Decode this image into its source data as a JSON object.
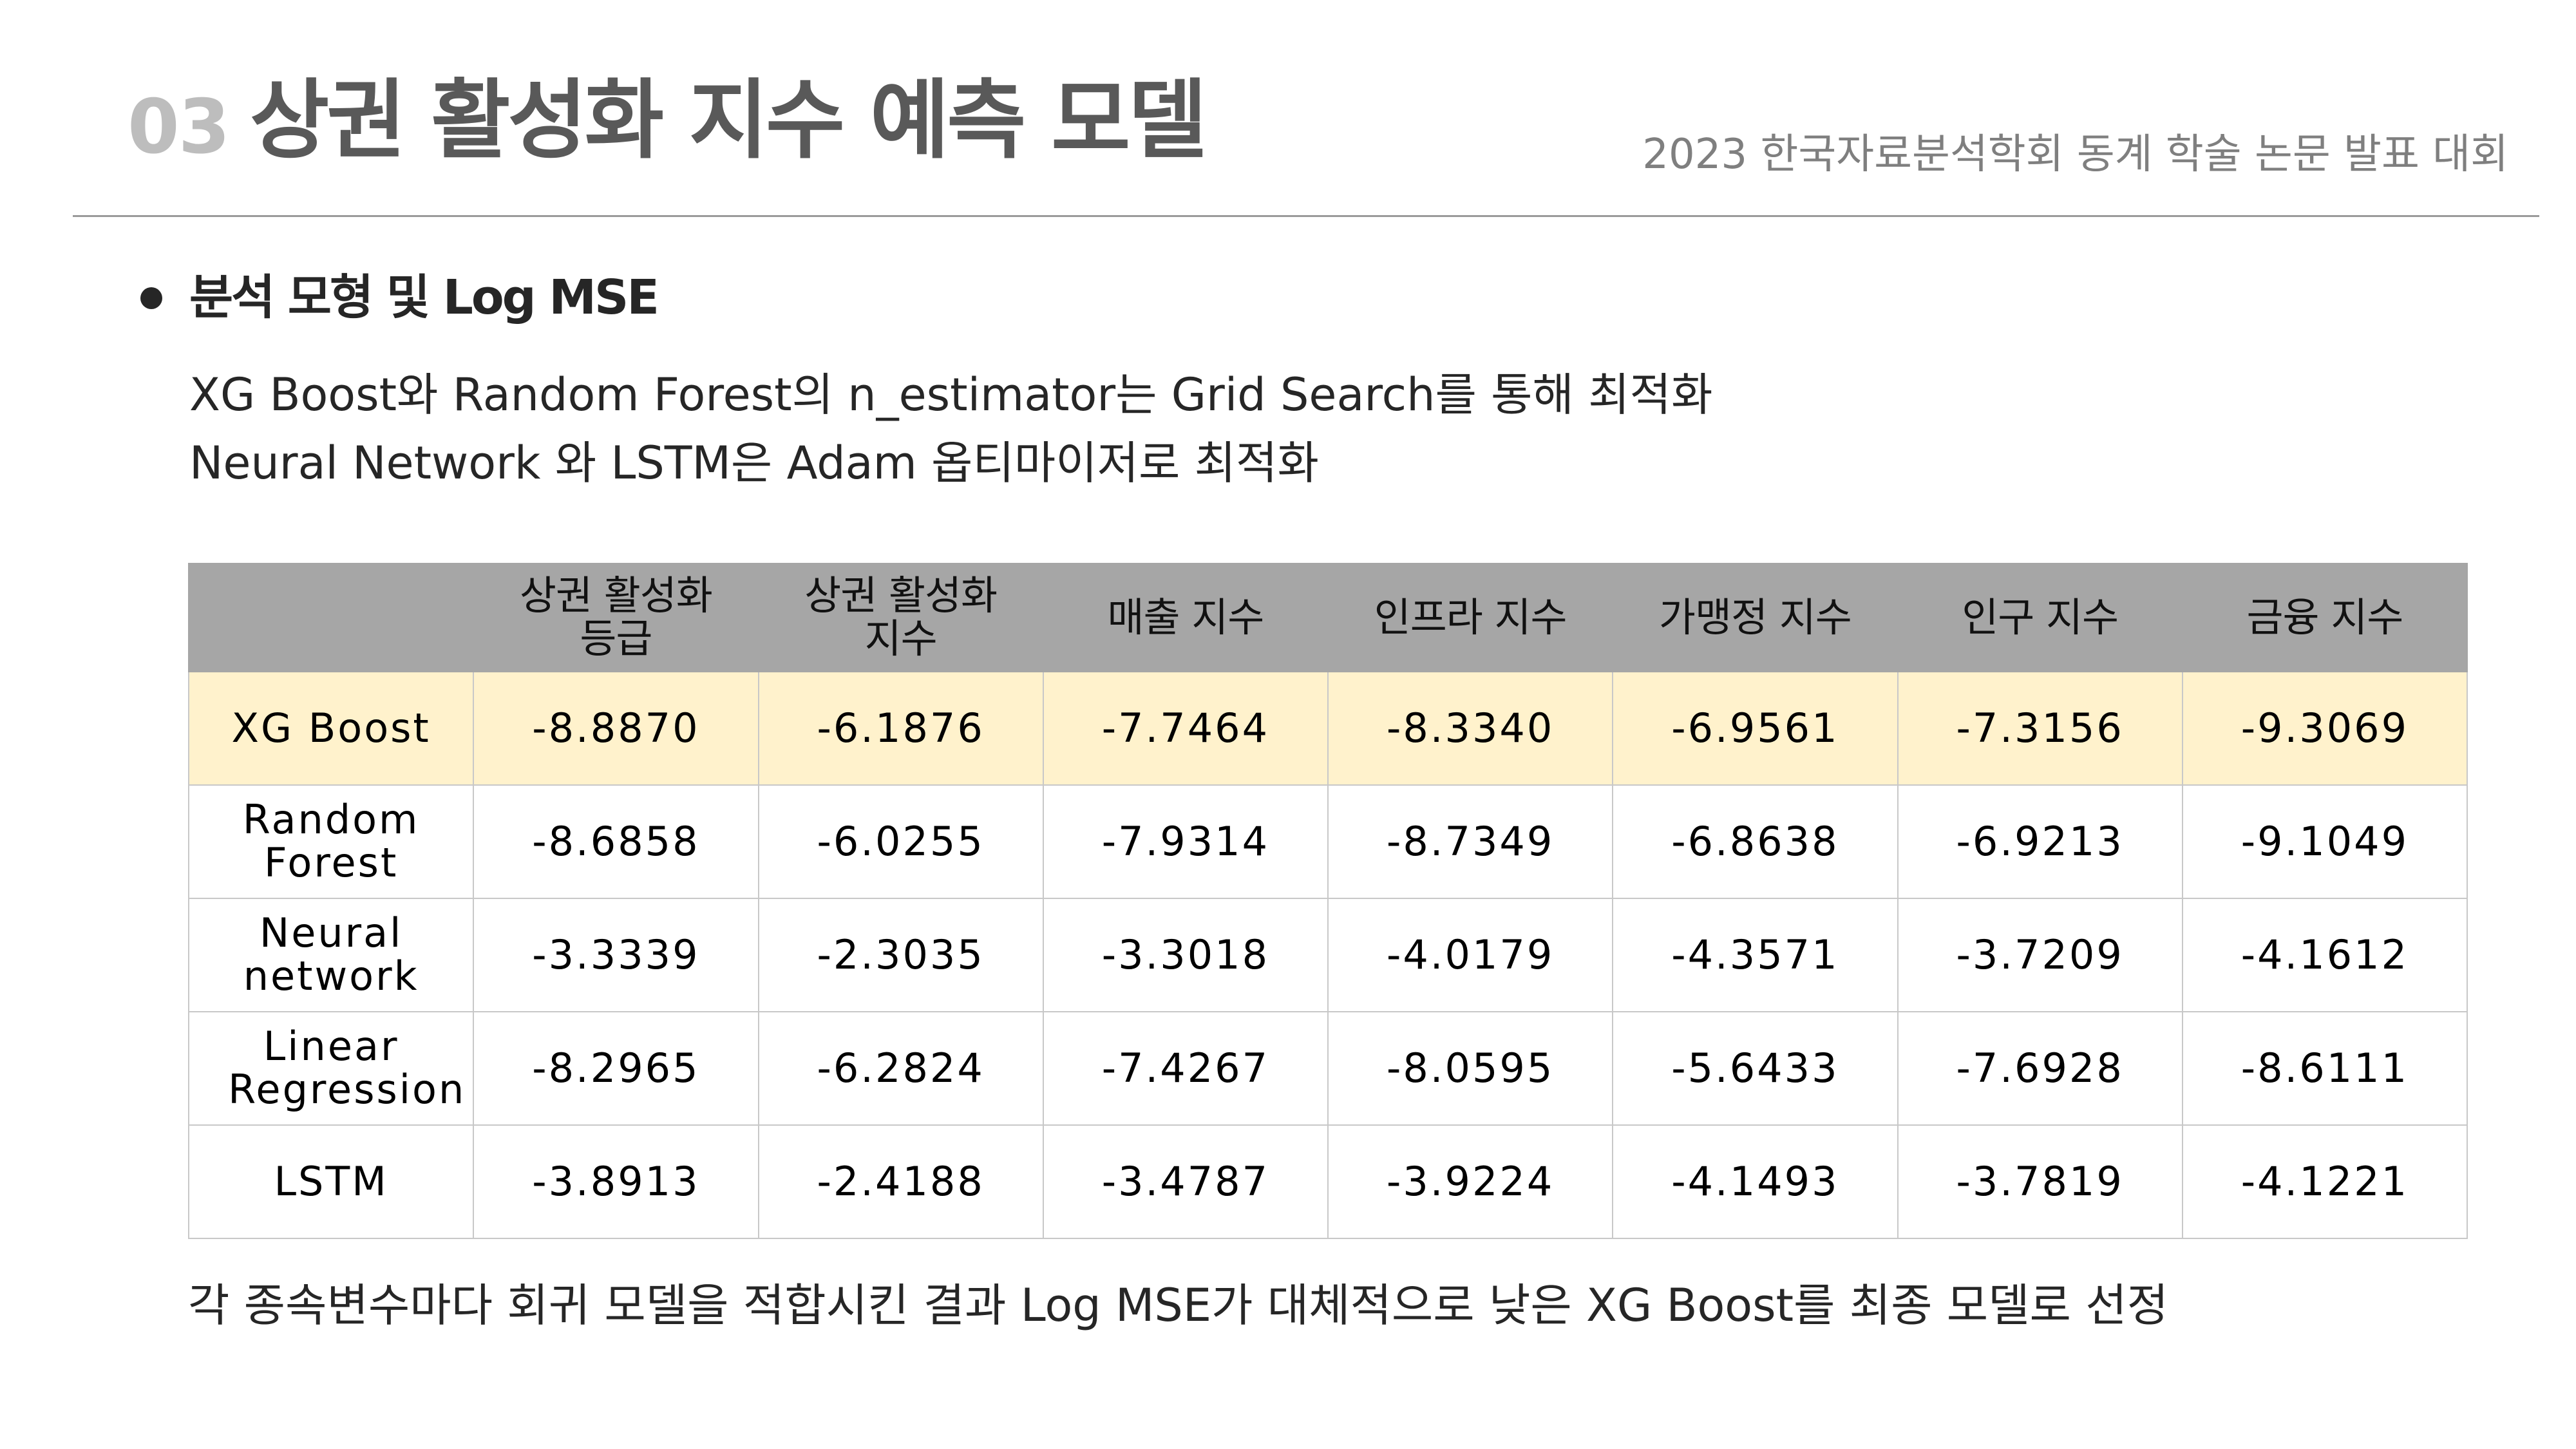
{
  "header": {
    "number": "03",
    "title": "상권 활성화 지수 예측 모델",
    "conference": "2023 한국자료분석학회 동계 학술 논문 발표 대회"
  },
  "section": {
    "heading": "분석 모형 및 Log MSE",
    "description": [
      "XG Boost와 Random Forest의 n_estimator는 Grid Search를 통해 최적화",
      "Neural Network 와 LSTM은 Adam 옵티마이저로 최적화"
    ]
  },
  "table": {
    "columns": [
      "",
      "상권 활성화 등급",
      "상권 활성화 지수",
      "매출 지수",
      "인프라 지수",
      "가맹정 지수",
      "인구 지수",
      "금융 지수"
    ],
    "rows": [
      {
        "model": "XG Boost",
        "values": [
          "-8.8870",
          "-6.1876",
          "-7.7464",
          "-8.3340",
          "-6.9561",
          "-7.3156",
          "-9.3069"
        ]
      },
      {
        "model": "Random Forest",
        "values": [
          "-8.6858",
          "-6.0255",
          "-7.9314",
          "-8.7349",
          "-6.8638",
          "-6.9213",
          "-9.1049"
        ]
      },
      {
        "model": "Neural network",
        "values": [
          "-3.3339",
          "-2.3035",
          "-3.3018",
          "-4.0179",
          "-4.3571",
          "-3.7209",
          "-4.1612"
        ]
      },
      {
        "model": "Linear Regression",
        "values": [
          "-8.2965",
          "-6.2824",
          "-7.4267",
          "-8.0595",
          "-5.6433",
          "-7.6928",
          "-8.6111"
        ]
      },
      {
        "model": "LSTM",
        "values": [
          "-3.8913",
          "-2.4188",
          "-3.4787",
          "-3.9224",
          "-4.1493",
          "-3.7819",
          "-4.1221"
        ]
      }
    ]
  },
  "conclusion": "각 종속변수마다 회귀 모델을 적합시킨 결과 Log MSE가 대체적으로 낮은 XG Boost를 최종 모델로 선정",
  "colors": {
    "header_fill": "#a6a6a6",
    "highlight_row": "#fff2cc",
    "title_gray": "#595959",
    "number_gray": "#bdbdbd"
  }
}
